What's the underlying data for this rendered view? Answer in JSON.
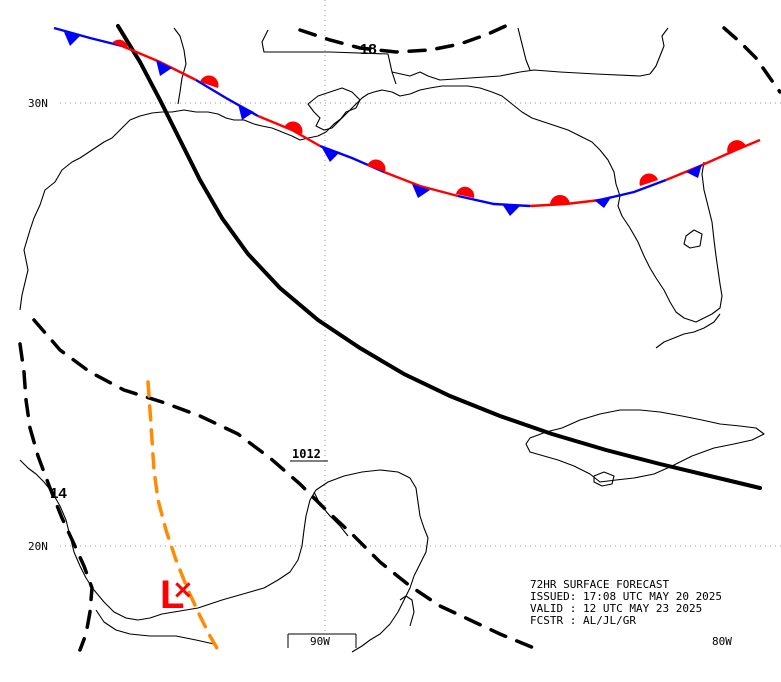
{
  "map": {
    "grid_labels": {
      "lat_30": "30N",
      "lat_20": "20N",
      "lon_90": "90W",
      "lon_80": "80W"
    },
    "isobars": [
      {
        "id": "isobar-1012",
        "label": "1012",
        "style": "solid"
      },
      {
        "id": "isobar-1014",
        "label": "14",
        "style": "dashed"
      },
      {
        "id": "isobar-1018",
        "label": "18",
        "style": "dashed"
      }
    ],
    "low": {
      "symbol": "L",
      "marker": "×",
      "color": "#ff0000"
    },
    "fronts": [
      {
        "id": "stationary-front",
        "type": "stationary",
        "warm_color": "#ff0000",
        "cold_color": "#0000ff"
      }
    ],
    "trough": {
      "id": "trough-line",
      "type": "trough",
      "color": "#ff8c00"
    }
  },
  "forecast_info": {
    "line1": "72HR SURFACE FORECAST",
    "line2": "ISSUED:  17:08 UTC MAY 20 2025",
    "line3": "VALID : 12 UTC MAY 23 2025",
    "line4": "FCSTR : AL/JL/GR"
  }
}
